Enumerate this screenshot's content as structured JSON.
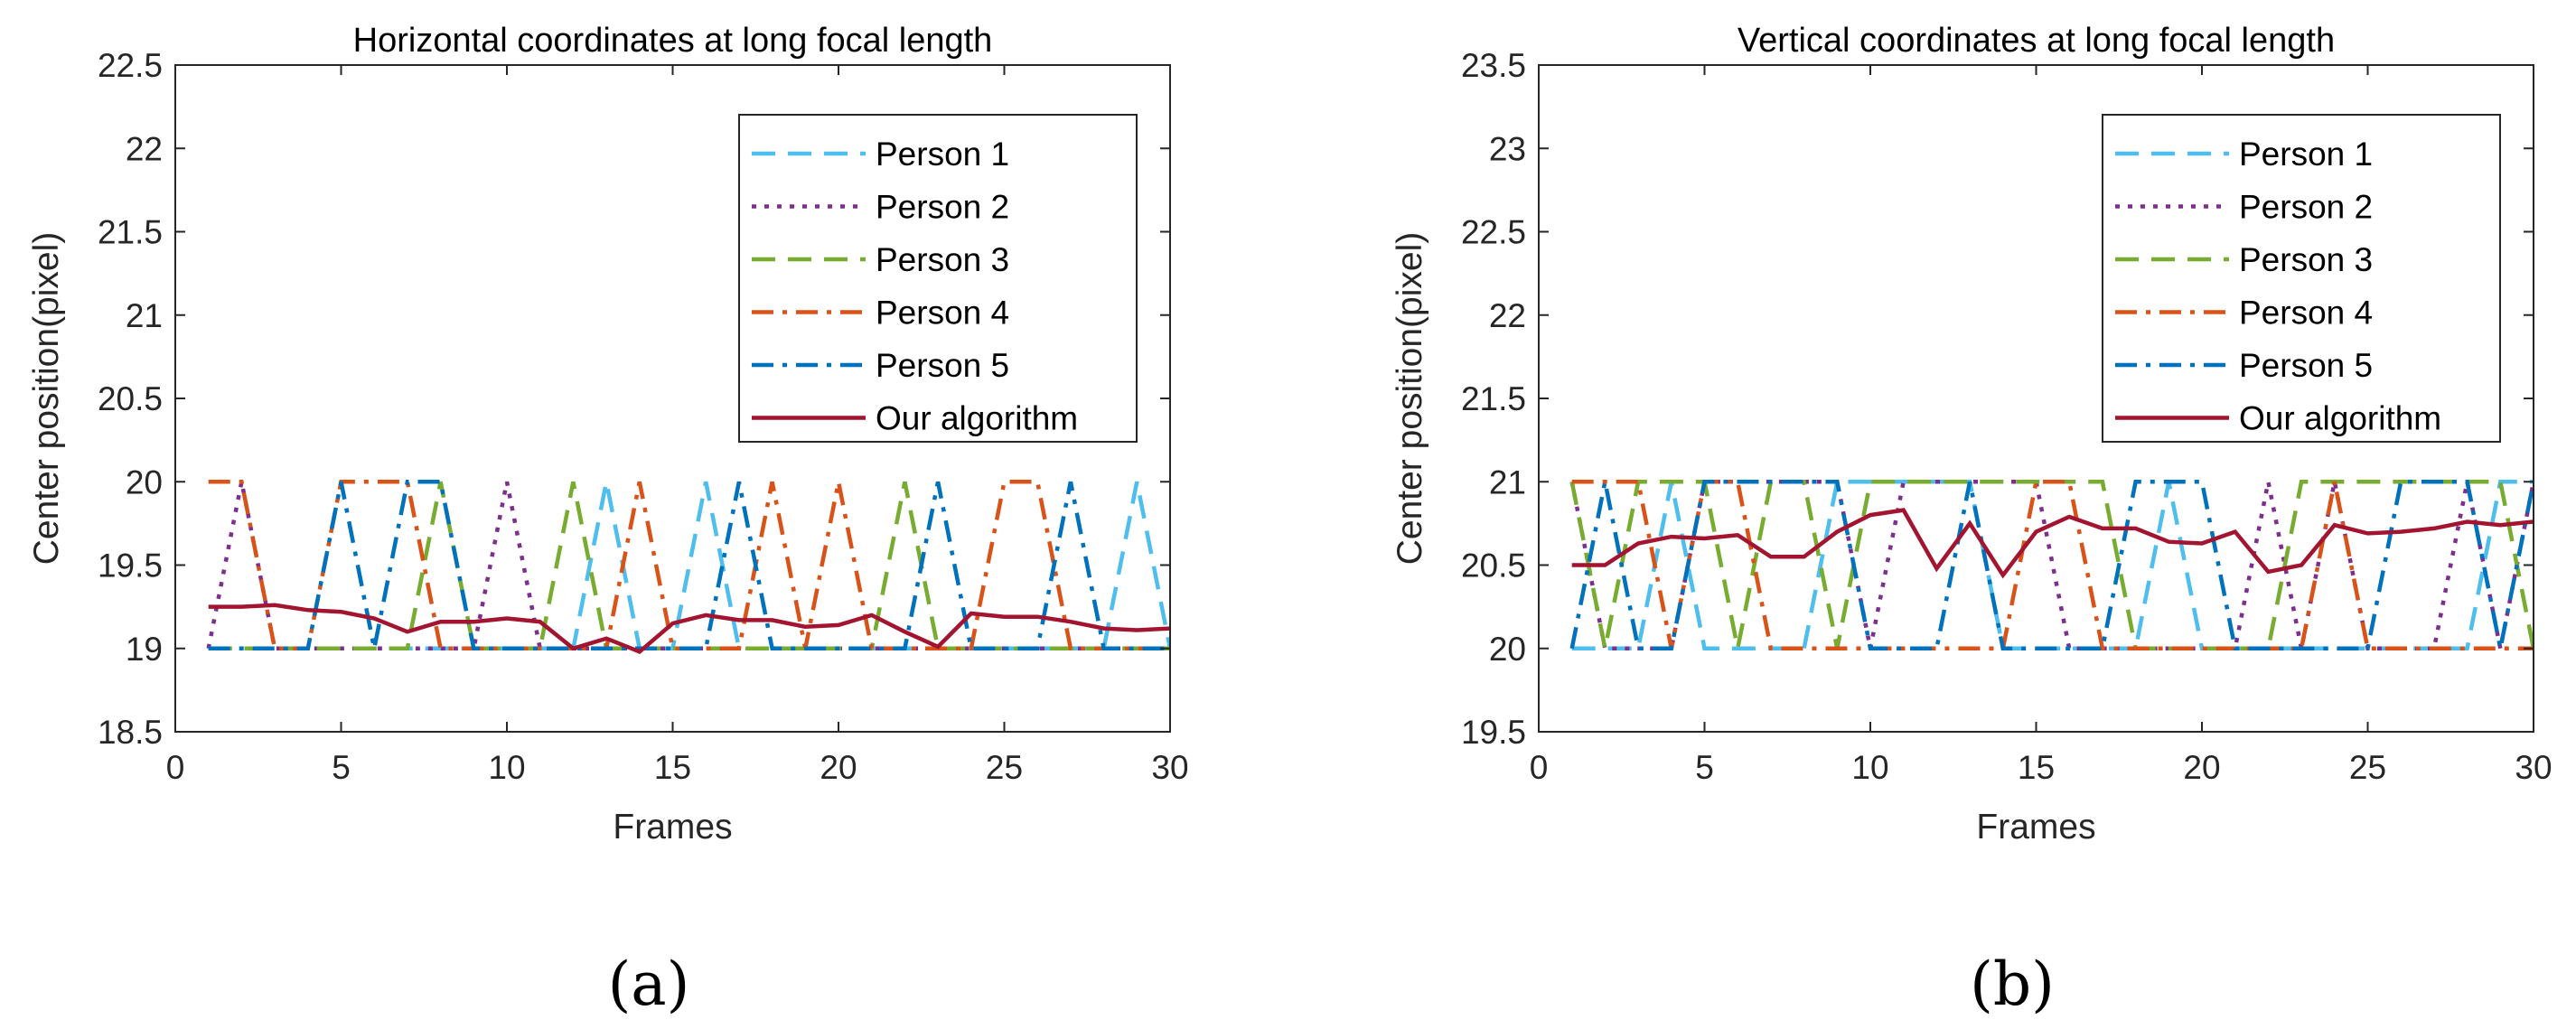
{
  "figure": {
    "captions": [
      "(a)",
      "(b)"
    ]
  },
  "colors": {
    "Person 1": "#4DBEEE",
    "Person 2": "#7E2F8E",
    "Person 3": "#77AC30",
    "Person 4": "#D95319",
    "Person 5": "#0072BD",
    "Our algorithm": "#A2142F"
  },
  "chart_data": [
    {
      "type": "line",
      "title": "Horizontal coordinates at long focal length",
      "xlabel": "Frames",
      "ylabel": "Center position(pixel)",
      "xlim": [
        0,
        30
      ],
      "ylim": [
        18.5,
        22.5
      ],
      "xticks": [
        0,
        5,
        10,
        15,
        20,
        25,
        30
      ],
      "yticks": [
        18.5,
        19,
        19.5,
        20,
        20.5,
        21,
        21.5,
        22,
        22.5
      ],
      "legend_position": "top-right",
      "x": [
        1,
        2,
        3,
        4,
        5,
        6,
        7,
        8,
        9,
        10,
        11,
        12,
        13,
        14,
        15,
        16,
        17,
        18,
        19,
        20,
        21,
        22,
        23,
        24,
        25,
        26,
        27,
        28,
        29,
        30
      ],
      "series": [
        {
          "name": "Person 1",
          "dash": "dashed",
          "values": [
            19,
            19,
            19,
            19,
            19,
            19,
            19,
            19,
            19,
            19,
            19,
            19,
            20,
            19,
            19,
            20,
            19,
            19,
            19,
            19,
            19,
            19,
            19,
            19,
            19,
            19,
            19,
            19,
            20,
            19
          ]
        },
        {
          "name": "Person 2",
          "dash": "dotted",
          "values": [
            19,
            20,
            19,
            19,
            19,
            19,
            19,
            19,
            19,
            20,
            19,
            19,
            19,
            19,
            19,
            19,
            19,
            19,
            19,
            19,
            19,
            19,
            19,
            19,
            19,
            19,
            19,
            19,
            19,
            19
          ]
        },
        {
          "name": "Person 3",
          "dash": "dashed",
          "values": [
            19,
            19,
            19,
            19,
            19,
            19,
            19,
            20,
            19,
            19,
            19,
            20,
            19,
            19,
            19,
            19,
            19,
            19,
            19,
            19,
            19,
            20,
            19,
            19,
            19,
            19,
            19,
            19,
            19,
            19
          ]
        },
        {
          "name": "Person 4",
          "dash": "dashdot",
          "values": [
            20,
            20,
            19,
            19,
            20,
            20,
            20,
            19,
            19,
            19,
            19,
            19,
            19,
            20,
            19,
            19,
            19,
            20,
            19,
            20,
            19,
            19,
            19,
            19,
            20,
            20,
            19,
            19,
            19,
            19
          ]
        },
        {
          "name": "Person 5",
          "dash": "dashdot",
          "values": [
            19,
            19,
            19,
            19,
            20,
            19,
            20,
            20,
            19,
            19,
            19,
            19,
            19,
            19,
            19,
            19,
            20,
            19,
            19,
            19,
            19,
            19,
            20,
            19,
            19,
            19,
            20,
            19,
            19,
            19
          ]
        },
        {
          "name": "Our algorithm",
          "dash": "solid",
          "values": [
            19.25,
            19.25,
            19.26,
            19.23,
            19.22,
            19.18,
            19.1,
            19.16,
            19.16,
            19.18,
            19.16,
            19.0,
            19.06,
            18.98,
            19.15,
            19.2,
            19.17,
            19.17,
            19.13,
            19.14,
            19.2,
            19.1,
            19.01,
            19.21,
            19.19,
            19.19,
            19.16,
            19.12,
            19.11,
            19.12
          ]
        }
      ]
    },
    {
      "type": "line",
      "title": "Vertical coordinates at long focal length",
      "xlabel": "Frames",
      "ylabel": "Center position(pixel)",
      "xlim": [
        0,
        30
      ],
      "ylim": [
        19.5,
        23.5
      ],
      "xticks": [
        0,
        5,
        10,
        15,
        20,
        25,
        30
      ],
      "yticks": [
        19.5,
        20,
        20.5,
        21,
        21.5,
        22,
        22.5,
        23,
        23.5
      ],
      "legend_position": "top-right",
      "x": [
        1,
        2,
        3,
        4,
        5,
        6,
        7,
        8,
        9,
        10,
        11,
        12,
        13,
        14,
        15,
        16,
        17,
        18,
        19,
        20,
        21,
        22,
        23,
        24,
        25,
        26,
        27,
        28,
        29,
        30
      ],
      "series": [
        {
          "name": "Person 1",
          "dash": "dashed",
          "values": [
            20,
            20,
            20,
            21,
            20,
            20,
            20,
            20,
            21,
            21,
            21,
            21,
            21,
            20,
            20,
            20,
            20,
            20,
            21,
            20,
            20,
            20,
            20,
            20,
            20,
            20,
            20,
            20,
            21,
            21
          ]
        },
        {
          "name": "Person 2",
          "dash": "dotted",
          "values": [
            21,
            20,
            20,
            20,
            21,
            21,
            21,
            21,
            21,
            20,
            21,
            21,
            21,
            21,
            21,
            20,
            20,
            20,
            20,
            20,
            20,
            21,
            20,
            21,
            20,
            20,
            20,
            21,
            20,
            21
          ]
        },
        {
          "name": "Person 3",
          "dash": "dashed",
          "values": [
            21,
            20,
            21,
            21,
            21,
            20,
            21,
            21,
            20,
            21,
            21,
            21,
            21,
            21,
            21,
            21,
            21,
            20,
            20,
            20,
            20,
            20,
            21,
            21,
            21,
            21,
            21,
            21,
            21,
            20
          ]
        },
        {
          "name": "Person 4",
          "dash": "dashdot",
          "values": [
            21,
            21,
            21,
            20,
            21,
            21,
            20,
            20,
            20,
            20,
            20,
            20,
            20,
            20,
            21,
            21,
            20,
            20,
            20,
            20,
            20,
            20,
            20,
            21,
            20,
            20,
            20,
            20,
            20,
            20
          ]
        },
        {
          "name": "Person 5",
          "dash": "dashdot",
          "values": [
            20,
            21,
            20,
            20,
            21,
            21,
            21,
            21,
            21,
            20,
            20,
            20,
            21,
            20,
            20,
            20,
            20,
            21,
            21,
            21,
            20,
            20,
            20,
            20,
            20,
            21,
            21,
            21,
            20,
            21
          ]
        },
        {
          "name": "Our algorithm",
          "dash": "solid",
          "values": [
            20.5,
            20.5,
            20.63,
            20.67,
            20.66,
            20.68,
            20.55,
            20.55,
            20.7,
            20.8,
            20.83,
            20.48,
            20.75,
            20.44,
            20.7,
            20.79,
            20.72,
            20.72,
            20.64,
            20.63,
            20.7,
            20.46,
            20.5,
            20.74,
            20.69,
            20.7,
            20.72,
            20.76,
            20.74,
            20.76
          ]
        }
      ]
    }
  ]
}
